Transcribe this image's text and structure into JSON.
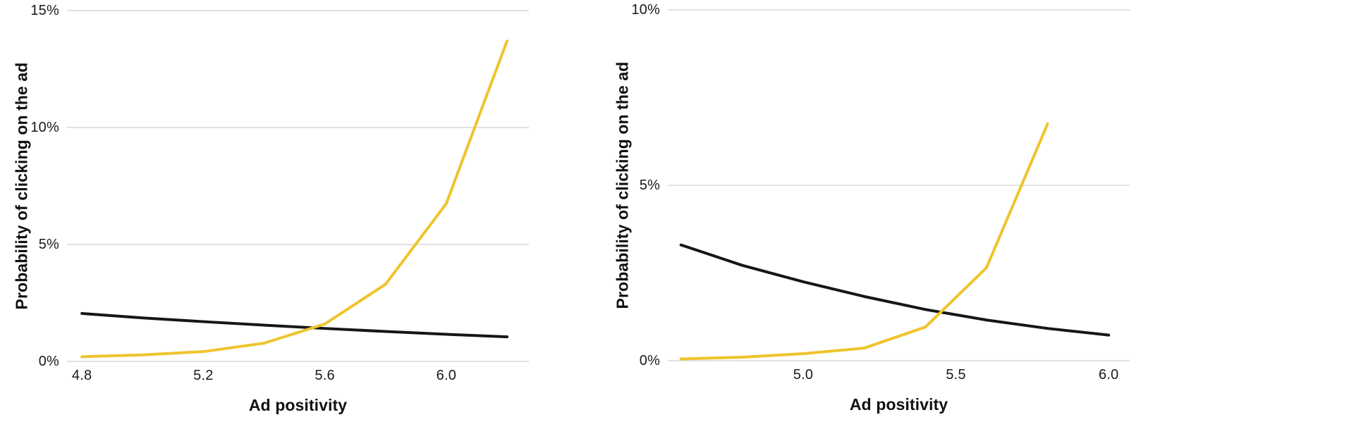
{
  "palette": {
    "yellow": "#efc42d",
    "black": "#161616",
    "gridline": "#d9d9d9",
    "tick_text": "#1a1a1a",
    "title_text": "#111111",
    "background": "#ffffff"
  },
  "chart_data": [
    {
      "type": "line",
      "title": "",
      "xlabel": "Ad positivity",
      "ylabel": "Probability of clicking on the ad",
      "xlim": [
        4.751,
        6.272
      ],
      "ylim": [
        0,
        15
      ],
      "grid": "horizontal",
      "legend_position": "none",
      "xticks": [
        {
          "value": 4.8,
          "label": "4.8"
        },
        {
          "value": 5.2,
          "label": "5.2"
        },
        {
          "value": 5.6,
          "label": "5.6"
        },
        {
          "value": 6.0,
          "label": "6.0"
        }
      ],
      "yticks": [
        {
          "value": 0,
          "label": "0%"
        },
        {
          "value": 5,
          "label": "5%"
        },
        {
          "value": 10,
          "label": "10%"
        },
        {
          "value": 15,
          "label": "15%"
        }
      ],
      "series": [
        {
          "name": "black-declining-line",
          "color": "black",
          "x": [
            4.8,
            5.0,
            5.2,
            5.4,
            5.6,
            5.8,
            6.0,
            6.2
          ],
          "y": [
            2.05,
            1.86,
            1.7,
            1.55,
            1.41,
            1.28,
            1.16,
            1.05
          ]
        },
        {
          "name": "yellow-rising-line",
          "color": "yellow",
          "x": [
            4.8,
            5.0,
            5.2,
            5.4,
            5.6,
            5.8,
            6.0,
            6.2
          ],
          "y": [
            0.2,
            0.28,
            0.42,
            0.78,
            1.6,
            3.3,
            6.75,
            13.7
          ]
        }
      ]
    },
    {
      "type": "line",
      "title": "",
      "xlabel": "Ad positivity",
      "ylabel": "Probability of clicking on the ad",
      "xlim": [
        4.557,
        6.069
      ],
      "ylim": [
        0,
        10
      ],
      "grid": "horizontal",
      "legend_position": "none",
      "xticks": [
        {
          "value": 5.0,
          "label": "5.0"
        },
        {
          "value": 5.5,
          "label": "5.5"
        },
        {
          "value": 6.0,
          "label": "6.0"
        }
      ],
      "yticks": [
        {
          "value": 0,
          "label": "0%"
        },
        {
          "value": 5,
          "label": "5%"
        },
        {
          "value": 10,
          "label": "10%"
        }
      ],
      "series": [
        {
          "name": "black-declining-line",
          "color": "black",
          "x": [
            4.6,
            4.8,
            5.0,
            5.2,
            5.4,
            5.6,
            5.8,
            6.0
          ],
          "y": [
            3.3,
            2.72,
            2.25,
            1.83,
            1.46,
            1.16,
            0.92,
            0.73
          ]
        },
        {
          "name": "yellow-rising-line",
          "color": "yellow",
          "x": [
            4.6,
            4.8,
            5.0,
            5.2,
            5.4,
            5.6,
            5.8
          ],
          "y": [
            0.05,
            0.1,
            0.2,
            0.36,
            0.96,
            2.65,
            6.75
          ]
        }
      ]
    }
  ]
}
